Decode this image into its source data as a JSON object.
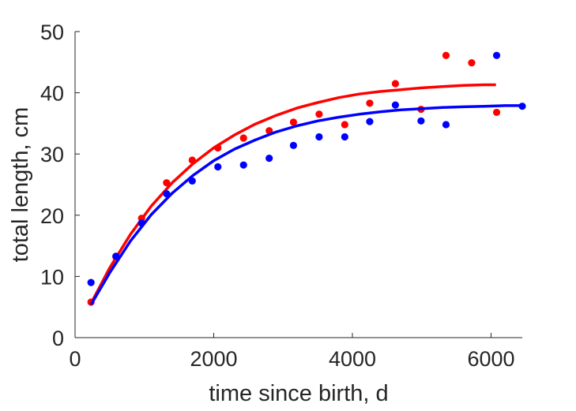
{
  "chart_data": {
    "type": "scatter",
    "title": "",
    "xlabel": "time since birth, d",
    "ylabel": "total length, cm",
    "xlim": [
      0,
      6450
    ],
    "ylim": [
      0,
      50
    ],
    "xticks": [
      0,
      2000,
      4000,
      6000
    ],
    "yticks": [
      0,
      10,
      20,
      30,
      40,
      50
    ],
    "grid": false,
    "legend": "none",
    "series": [
      {
        "color": "#ff0000",
        "points": [
          {
            "x": 230,
            "y": 5.8
          },
          {
            "x": 590,
            "y": 13.2
          },
          {
            "x": 960,
            "y": 19.5
          },
          {
            "x": 1320,
            "y": 25.3
          },
          {
            "x": 1690,
            "y": 29.0
          },
          {
            "x": 2060,
            "y": 31.0
          },
          {
            "x": 2430,
            "y": 32.6
          },
          {
            "x": 2800,
            "y": 33.8
          },
          {
            "x": 3150,
            "y": 35.2
          },
          {
            "x": 3520,
            "y": 36.5
          },
          {
            "x": 3890,
            "y": 34.8
          },
          {
            "x": 4250,
            "y": 38.3
          },
          {
            "x": 4620,
            "y": 41.5
          },
          {
            "x": 4990,
            "y": 37.3
          },
          {
            "x": 5350,
            "y": 46.1
          },
          {
            "x": 5720,
            "y": 44.9
          },
          {
            "x": 6080,
            "y": 36.8
          }
        ],
        "curve": [
          {
            "x": 230,
            "y": 5.6
          },
          {
            "x": 500,
            "y": 11.4
          },
          {
            "x": 800,
            "y": 16.9
          },
          {
            "x": 1100,
            "y": 21.5
          },
          {
            "x": 1400,
            "y": 25.3
          },
          {
            "x": 1700,
            "y": 28.4
          },
          {
            "x": 2000,
            "y": 31.0
          },
          {
            "x": 2300,
            "y": 33.1
          },
          {
            "x": 2600,
            "y": 34.9
          },
          {
            "x": 2900,
            "y": 36.3
          },
          {
            "x": 3200,
            "y": 37.5
          },
          {
            "x": 3500,
            "y": 38.4
          },
          {
            "x": 3800,
            "y": 39.2
          },
          {
            "x": 4100,
            "y": 39.8
          },
          {
            "x": 4400,
            "y": 40.2
          },
          {
            "x": 4700,
            "y": 40.5
          },
          {
            "x": 5000,
            "y": 40.8
          },
          {
            "x": 5300,
            "y": 41.0
          },
          {
            "x": 5600,
            "y": 41.2
          },
          {
            "x": 5900,
            "y": 41.3
          },
          {
            "x": 6070,
            "y": 41.3
          }
        ]
      },
      {
        "color": "#0000ff",
        "points": [
          {
            "x": 230,
            "y": 9.0
          },
          {
            "x": 590,
            "y": 13.3
          },
          {
            "x": 960,
            "y": 18.7
          },
          {
            "x": 1320,
            "y": 23.5
          },
          {
            "x": 1690,
            "y": 25.6
          },
          {
            "x": 2060,
            "y": 27.9
          },
          {
            "x": 2430,
            "y": 28.2
          },
          {
            "x": 2800,
            "y": 29.3
          },
          {
            "x": 3150,
            "y": 31.4
          },
          {
            "x": 3520,
            "y": 32.8
          },
          {
            "x": 3890,
            "y": 32.8
          },
          {
            "x": 4250,
            "y": 35.3
          },
          {
            "x": 4620,
            "y": 38.0
          },
          {
            "x": 4990,
            "y": 35.4
          },
          {
            "x": 5350,
            "y": 34.8
          },
          {
            "x": 6080,
            "y": 46.1
          },
          {
            "x": 6450,
            "y": 37.8
          }
        ],
        "curve": [
          {
            "x": 230,
            "y": 5.4
          },
          {
            "x": 500,
            "y": 10.6
          },
          {
            "x": 800,
            "y": 15.8
          },
          {
            "x": 1100,
            "y": 20.1
          },
          {
            "x": 1400,
            "y": 23.6
          },
          {
            "x": 1700,
            "y": 26.5
          },
          {
            "x": 2000,
            "y": 28.9
          },
          {
            "x": 2300,
            "y": 30.8
          },
          {
            "x": 2600,
            "y": 32.3
          },
          {
            "x": 2900,
            "y": 33.6
          },
          {
            "x": 3200,
            "y": 34.6
          },
          {
            "x": 3500,
            "y": 35.4
          },
          {
            "x": 3800,
            "y": 36.0
          },
          {
            "x": 4100,
            "y": 36.5
          },
          {
            "x": 4400,
            "y": 36.9
          },
          {
            "x": 4700,
            "y": 37.2
          },
          {
            "x": 5000,
            "y": 37.4
          },
          {
            "x": 5300,
            "y": 37.6
          },
          {
            "x": 5600,
            "y": 37.7
          },
          {
            "x": 5900,
            "y": 37.8
          },
          {
            "x": 6200,
            "y": 37.9
          },
          {
            "x": 6450,
            "y": 37.9
          }
        ]
      }
    ]
  }
}
